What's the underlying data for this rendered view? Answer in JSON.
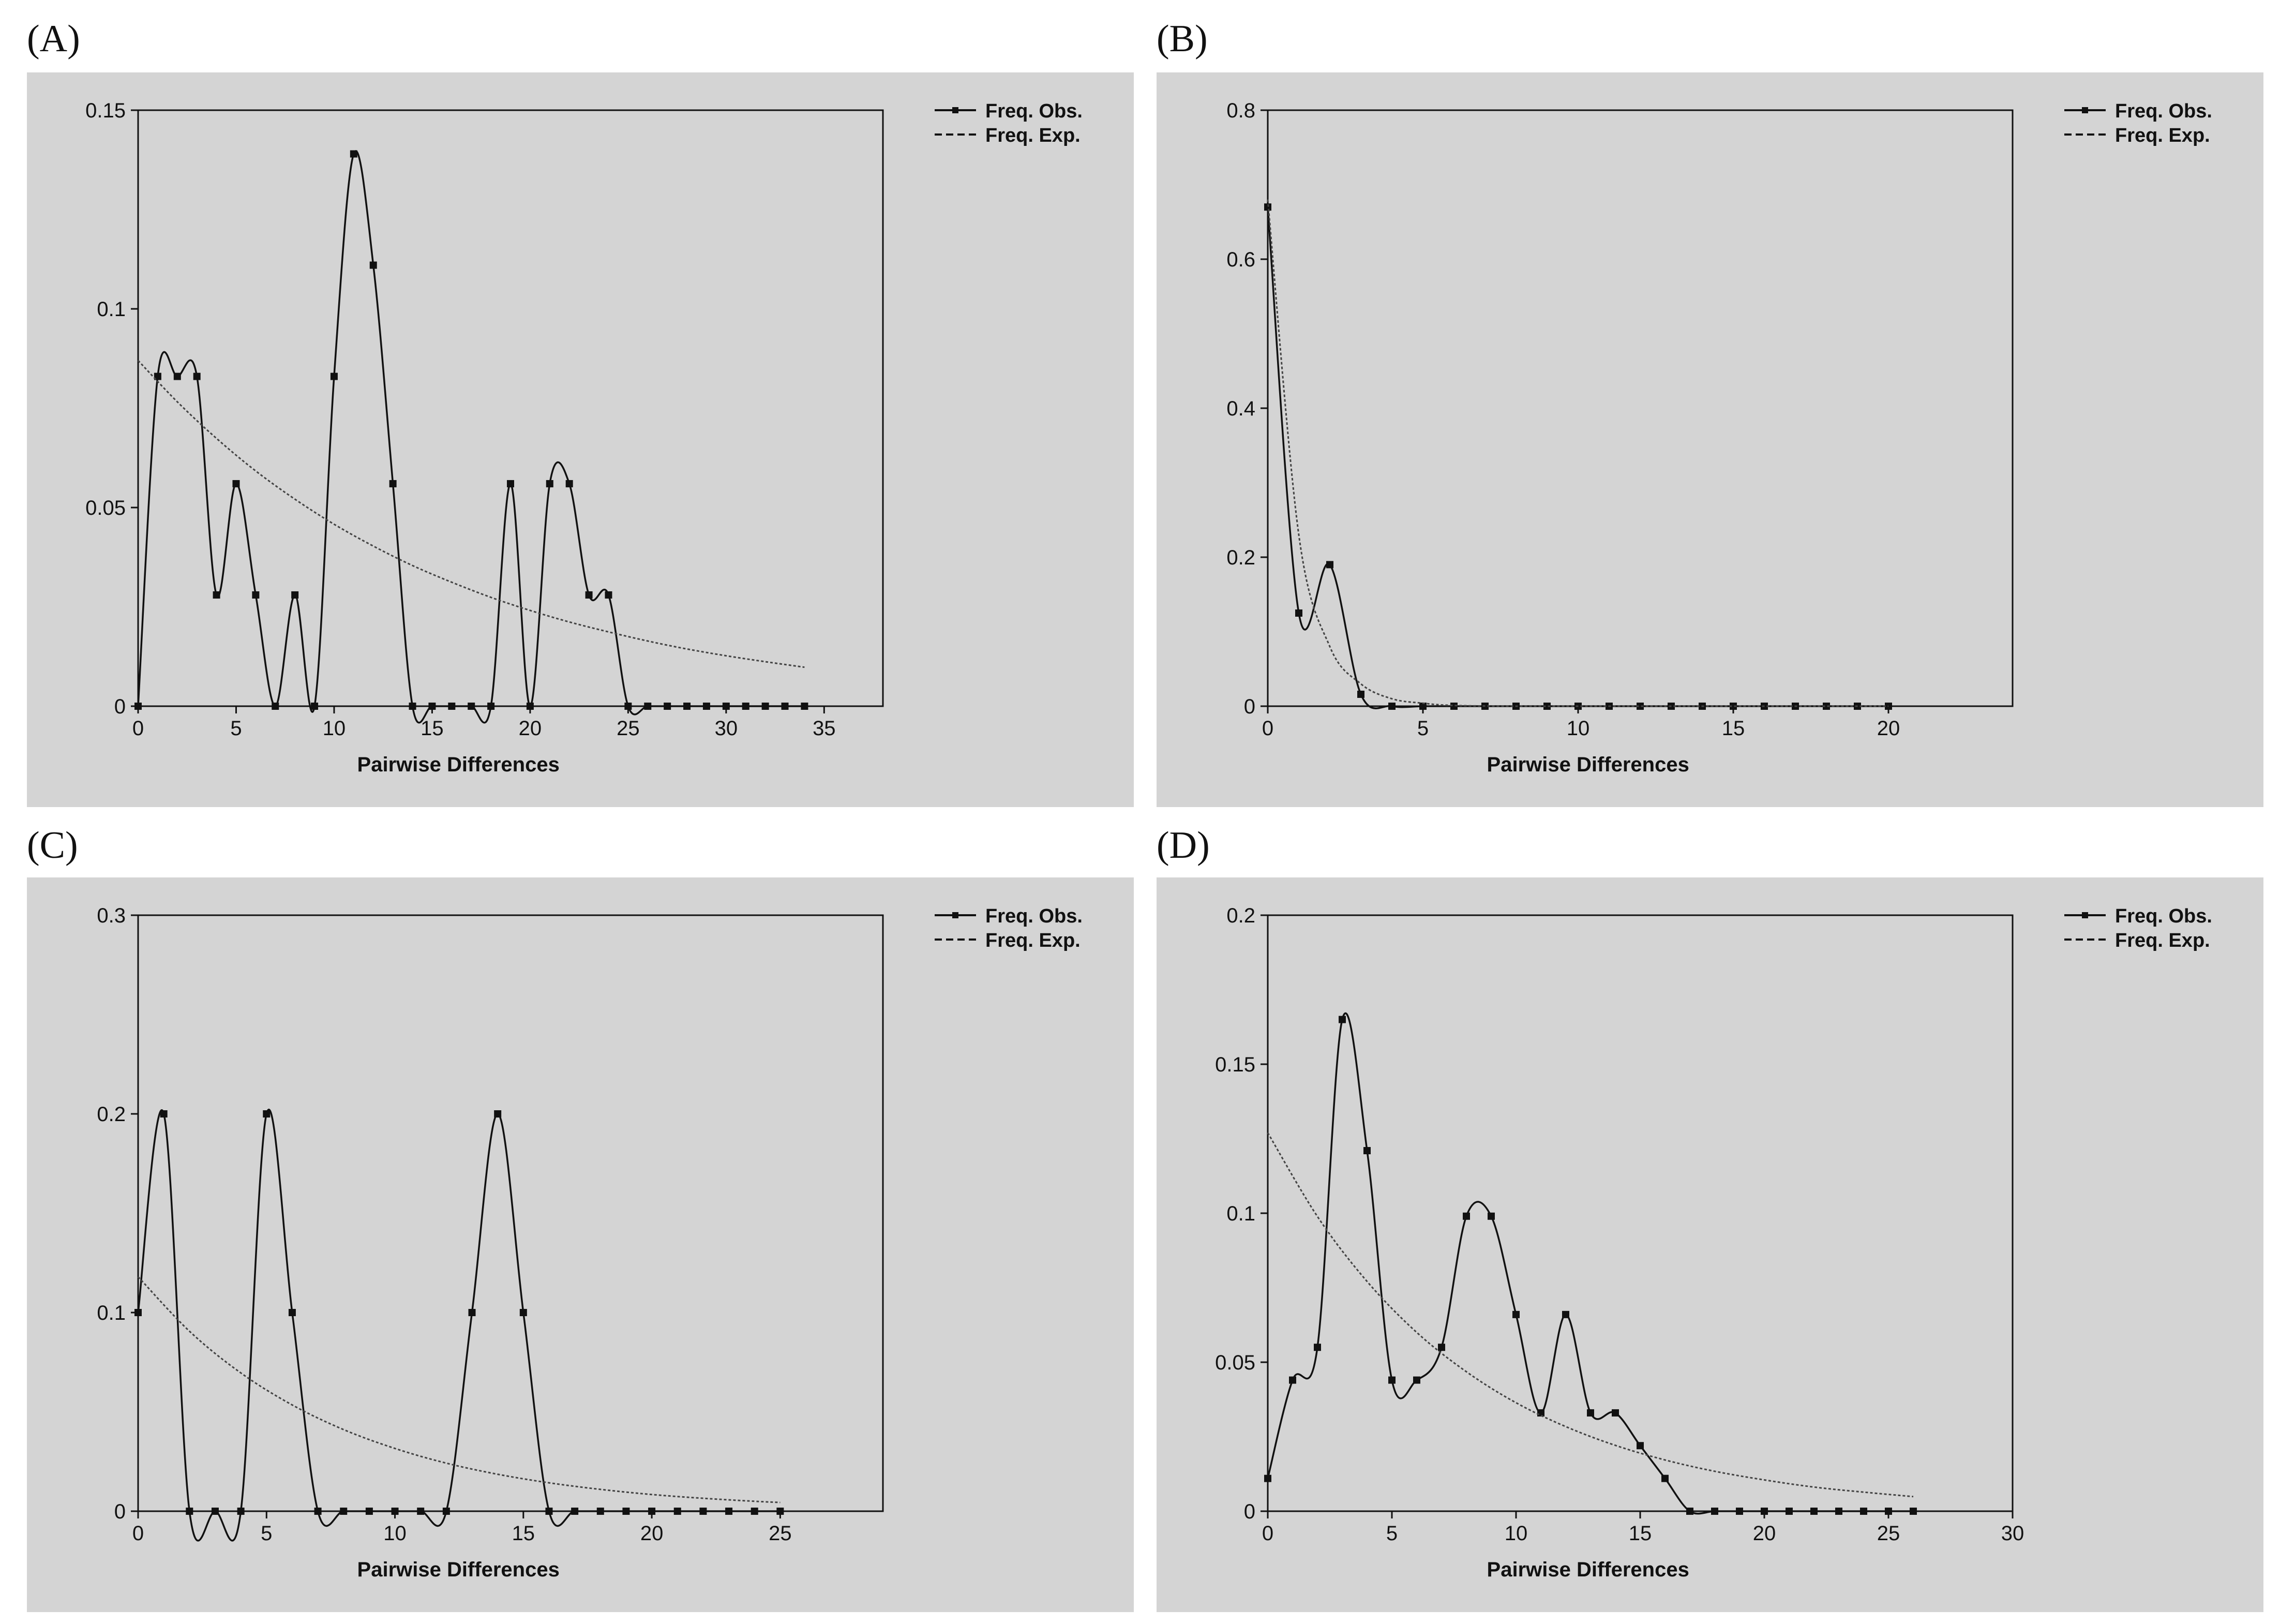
{
  "chart_data": [
    {
      "panel_label": "(A)",
      "type": "line",
      "xlabel": "Pairwise Differences",
      "ylabel": "",
      "xlim": [
        0,
        38
      ],
      "ylim": [
        0,
        0.15
      ],
      "xticks": [
        0,
        5,
        10,
        15,
        20,
        25,
        30,
        35
      ],
      "yticks": [
        0,
        0.05,
        0.1,
        0.15
      ],
      "ytick_labels": [
        "0",
        "0.05",
        "0.1",
        "0.15"
      ],
      "legend": {
        "position": "top-right",
        "entries": [
          "Freq. Obs.",
          "Freq. Exp."
        ]
      },
      "series": [
        {
          "name": "Freq. Obs.",
          "style": "solid-markers",
          "x": [
            0,
            1,
            2,
            3,
            4,
            5,
            6,
            7,
            8,
            9,
            10,
            11,
            12,
            13,
            14,
            15,
            16,
            17,
            18,
            19,
            20,
            21,
            22,
            23,
            24,
            25,
            26,
            27,
            28,
            29,
            30,
            31,
            32,
            33,
            34
          ],
          "values": [
            0,
            0.083,
            0.083,
            0.083,
            0.028,
            0.056,
            0.028,
            0,
            0.028,
            0,
            0.083,
            0.139,
            0.111,
            0.056,
            0,
            0,
            0,
            0,
            0,
            0.056,
            0,
            0.056,
            0.056,
            0.028,
            0.028,
            0,
            0,
            0,
            0,
            0,
            0,
            0,
            0,
            0,
            0
          ]
        },
        {
          "name": "Freq. Exp.",
          "style": "dotted",
          "x": [
            0,
            2,
            4,
            6,
            8,
            10,
            12,
            14,
            16,
            18,
            20,
            22,
            24,
            26,
            28,
            30,
            32,
            34
          ],
          "values": [
            0.087,
            0.0766,
            0.0674,
            0.0592,
            0.0521,
            0.0458,
            0.0403,
            0.0354,
            0.0312,
            0.0274,
            0.0241,
            0.0212,
            0.0187,
            0.0164,
            0.0144,
            0.0127,
            0.0112,
            0.0098
          ]
        }
      ]
    },
    {
      "panel_label": "(B)",
      "type": "line",
      "xlabel": "Pairwise Differences",
      "ylabel": "",
      "xlim": [
        0,
        24
      ],
      "ylim": [
        0,
        0.8
      ],
      "xticks": [
        0,
        5,
        10,
        15,
        20
      ],
      "yticks": [
        0,
        0.2,
        0.4,
        0.6,
        0.8
      ],
      "ytick_labels": [
        "0",
        "0.2",
        "0.4",
        "0.6",
        "0.8"
      ],
      "legend": {
        "position": "top-right",
        "entries": [
          "Freq. Obs.",
          "Freq. Exp."
        ]
      },
      "series": [
        {
          "name": "Freq. Obs.",
          "style": "solid-markers",
          "x": [
            0,
            1,
            2,
            3,
            4,
            5,
            6,
            7,
            8,
            9,
            10,
            11,
            12,
            13,
            14,
            15,
            16,
            17,
            18,
            19,
            20
          ],
          "values": [
            0.67,
            0.125,
            0.19,
            0.016,
            0,
            0,
            0,
            0,
            0,
            0,
            0,
            0,
            0,
            0,
            0,
            0,
            0,
            0,
            0,
            0,
            0
          ]
        },
        {
          "name": "Freq. Exp.",
          "style": "dotted",
          "x": [
            0,
            1,
            2,
            3,
            4,
            5,
            6,
            8,
            10,
            12,
            14,
            16,
            18,
            20
          ],
          "values": [
            0.68,
            0.23,
            0.08,
            0.03,
            0.01,
            0.004,
            0.001,
            0,
            0,
            0,
            0,
            0,
            0,
            0
          ]
        }
      ]
    },
    {
      "panel_label": "(C)",
      "type": "line",
      "xlabel": "Pairwise Differences",
      "ylabel": "",
      "xlim": [
        0,
        29
      ],
      "ylim": [
        0,
        0.3
      ],
      "xticks": [
        0,
        5,
        10,
        15,
        20,
        25
      ],
      "yticks": [
        0,
        0.1,
        0.2,
        0.3
      ],
      "ytick_labels": [
        "0",
        "0.1",
        "0.2",
        "0.3"
      ],
      "legend": {
        "position": "top-right",
        "entries": [
          "Freq. Obs.",
          "Freq. Exp."
        ]
      },
      "series": [
        {
          "name": "Freq. Obs.",
          "style": "solid-markers",
          "x": [
            0,
            1,
            2,
            3,
            4,
            5,
            6,
            7,
            8,
            9,
            10,
            11,
            12,
            13,
            14,
            15,
            16,
            17,
            18,
            19,
            20,
            21,
            22,
            23,
            24,
            25
          ],
          "values": [
            0.1,
            0.2,
            0,
            0,
            0,
            0.2,
            0.1,
            0,
            0,
            0,
            0,
            0,
            0,
            0.1,
            0.2,
            0.1,
            0,
            0,
            0,
            0,
            0,
            0,
            0,
            0,
            0,
            0
          ]
        },
        {
          "name": "Freq. Exp.",
          "style": "dotted",
          "x": [
            0,
            2,
            4,
            6,
            8,
            10,
            12,
            14,
            16,
            18,
            20,
            22,
            24,
            25
          ],
          "values": [
            0.118,
            0.0906,
            0.0696,
            0.0535,
            0.0411,
            0.0316,
            0.0242,
            0.0186,
            0.0143,
            0.011,
            0.0084,
            0.0065,
            0.005,
            0.0044
          ]
        }
      ]
    },
    {
      "panel_label": "(D)",
      "type": "line",
      "xlabel": "Pairwise Differences",
      "ylabel": "",
      "xlim": [
        0,
        30
      ],
      "ylim": [
        0,
        0.2
      ],
      "xticks": [
        0,
        5,
        10,
        15,
        20,
        25,
        30
      ],
      "yticks": [
        0,
        0.05,
        0.1,
        0.15,
        0.2
      ],
      "ytick_labels": [
        "0",
        "0.05",
        "0.1",
        "0.15",
        "0.2"
      ],
      "legend": {
        "position": "top-right",
        "entries": [
          "Freq. Obs.",
          "Freq. Exp."
        ]
      },
      "series": [
        {
          "name": "Freq. Obs.",
          "style": "solid-markers",
          "x": [
            0,
            1,
            2,
            3,
            4,
            5,
            6,
            7,
            8,
            9,
            10,
            11,
            12,
            13,
            14,
            15,
            16,
            17,
            18,
            19,
            20,
            21,
            22,
            23,
            24,
            25,
            26
          ],
          "values": [
            0.011,
            0.044,
            0.055,
            0.165,
            0.121,
            0.044,
            0.044,
            0.055,
            0.099,
            0.099,
            0.066,
            0.033,
            0.066,
            0.033,
            0.033,
            0.022,
            0.011,
            0,
            0,
            0,
            0,
            0,
            0,
            0,
            0,
            0,
            0
          ]
        },
        {
          "name": "Freq. Exp.",
          "style": "dotted",
          "x": [
            0,
            2,
            4,
            6,
            8,
            10,
            12,
            14,
            16,
            18,
            20,
            22,
            24,
            26
          ],
          "values": [
            0.127,
            0.0989,
            0.0771,
            0.06,
            0.0468,
            0.0364,
            0.0284,
            0.0221,
            0.0172,
            0.0134,
            0.0105,
            0.0081,
            0.0064,
            0.0049
          ]
        }
      ]
    }
  ]
}
